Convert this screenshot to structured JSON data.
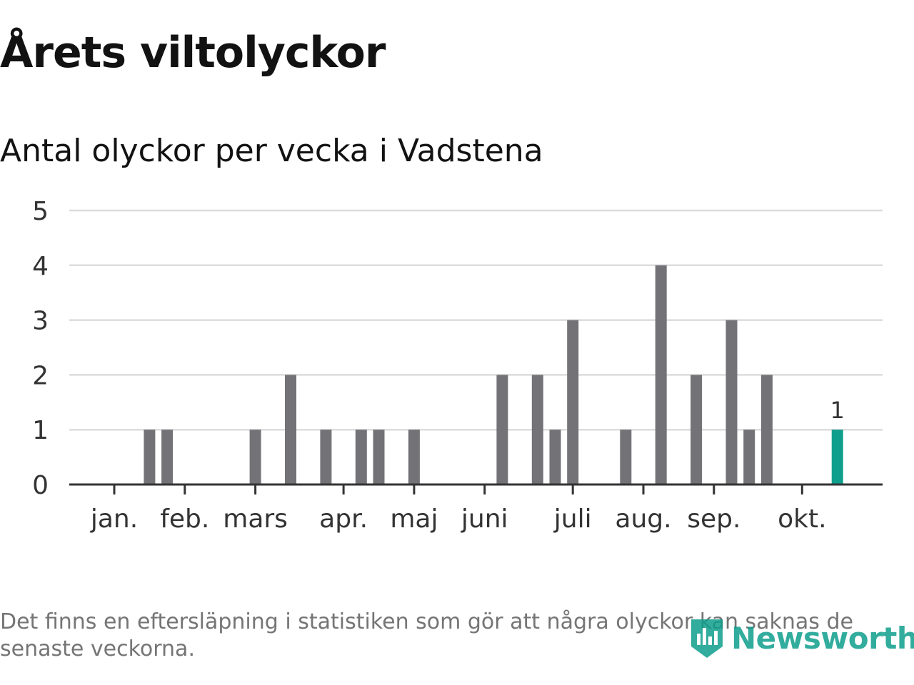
{
  "title": "Årets viltolyckor",
  "subtitle": "Antal olyckor per vecka i Vadstena",
  "footnote": "Det finns en eftersläpning i statistiken som gör att några olyckor kan saknas de senaste veckorna.",
  "logo": {
    "text": "Newsworthy",
    "icon": "bar-chart-shield-icon",
    "color": "#0e9e8c"
  },
  "chart_data": {
    "type": "bar",
    "title": "Antal olyckor per vecka i Vadstena",
    "xlabel": "",
    "ylabel": "",
    "ylim": [
      0,
      5
    ],
    "yticks": [
      "0",
      "1",
      "2",
      "3",
      "4",
      "5"
    ],
    "grid": true,
    "legend": "none",
    "bar_color": "#737277",
    "highlight_color": "#0e9e8c",
    "month_labels": [
      {
        "label": "jan.",
        "week": 1
      },
      {
        "label": "feb.",
        "week": 5
      },
      {
        "label": "mars",
        "week": 9
      },
      {
        "label": "apr.",
        "week": 14
      },
      {
        "label": "maj",
        "week": 18
      },
      {
        "label": "juni",
        "week": 22
      },
      {
        "label": "juli",
        "week": 27
      },
      {
        "label": "aug.",
        "week": 31
      },
      {
        "label": "sep.",
        "week": 35
      },
      {
        "label": "okt.",
        "week": 40
      }
    ],
    "weeks": [
      1,
      2,
      3,
      4,
      5,
      6,
      7,
      8,
      9,
      10,
      11,
      12,
      13,
      14,
      15,
      16,
      17,
      18,
      19,
      20,
      21,
      22,
      23,
      24,
      25,
      26,
      27,
      28,
      29,
      30,
      31,
      32,
      33,
      34,
      35,
      36,
      37,
      38,
      39,
      40,
      41,
      42
    ],
    "values": [
      0,
      0,
      1,
      1,
      0,
      0,
      0,
      0,
      1,
      0,
      2,
      0,
      1,
      0,
      1,
      1,
      0,
      1,
      0,
      0,
      0,
      0,
      2,
      0,
      2,
      1,
      3,
      0,
      0,
      1,
      0,
      4,
      0,
      2,
      0,
      3,
      1,
      2,
      0,
      0,
      0,
      1
    ],
    "highlight_week": 42,
    "highlight_label": "1"
  }
}
